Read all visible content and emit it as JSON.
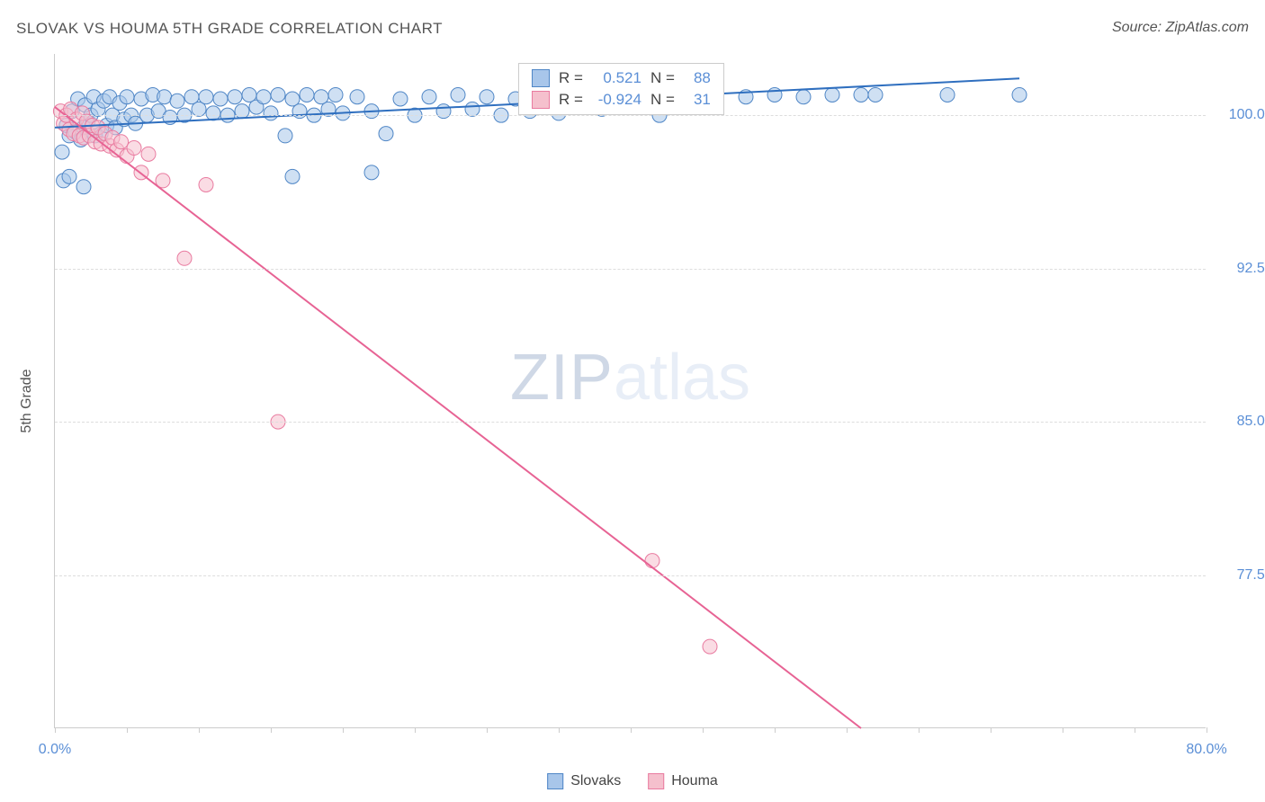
{
  "title": "SLOVAK VS HOUMA 5TH GRADE CORRELATION CHART",
  "source": "Source: ZipAtlas.com",
  "y_axis_label": "5th Grade",
  "chart": {
    "type": "scatter",
    "xlim": [
      0.0,
      80.0
    ],
    "ylim": [
      70.0,
      103.0
    ],
    "x_tick_start": 0.0,
    "x_tick_end": 80.0,
    "x_tick_step": 5.0,
    "x_tick_labels": [
      {
        "x": 0.0,
        "text": "0.0%"
      },
      {
        "x": 80.0,
        "text": "80.0%"
      }
    ],
    "y_ticks": [
      77.5,
      85.0,
      92.5,
      100.0
    ],
    "y_tick_labels": [
      "77.5%",
      "85.0%",
      "92.5%",
      "100.0%"
    ],
    "grid_color": "#dddddd",
    "axis_color": "#cccccc",
    "background_color": "#ffffff",
    "marker_radius": 8,
    "marker_opacity": 0.55,
    "line_width": 2
  },
  "series": [
    {
      "name": "Slovaks",
      "color_fill": "#a8c6ea",
      "color_stroke": "#4f86c6",
      "line_color": "#2f6fbf",
      "R": "0.521",
      "N": "88",
      "trend": {
        "x1": 0,
        "y1": 99.4,
        "x2": 67,
        "y2": 101.8
      },
      "points": [
        [
          0.5,
          98.2
        ],
        [
          0.8,
          99.5
        ],
        [
          1.0,
          99.0
        ],
        [
          1.2,
          100.2
        ],
        [
          1.4,
          99.2
        ],
        [
          1.6,
          100.8
        ],
        [
          1.8,
          98.8
        ],
        [
          2.0,
          99.4
        ],
        [
          2.1,
          100.5
        ],
        [
          2.3,
          99.7
        ],
        [
          2.5,
          100.0
        ],
        [
          2.7,
          100.9
        ],
        [
          2.8,
          99.0
        ],
        [
          3.0,
          100.3
        ],
        [
          3.2,
          99.1
        ],
        [
          3.4,
          100.7
        ],
        [
          3.6,
          99.5
        ],
        [
          3.8,
          100.9
        ],
        [
          4.0,
          100.0
        ],
        [
          4.2,
          99.4
        ],
        [
          4.5,
          100.6
        ],
        [
          4.8,
          99.8
        ],
        [
          5.0,
          100.9
        ],
        [
          5.3,
          100.0
        ],
        [
          5.6,
          99.6
        ],
        [
          6.0,
          100.8
        ],
        [
          6.4,
          100.0
        ],
        [
          6.8,
          101.0
        ],
        [
          7.2,
          100.2
        ],
        [
          7.6,
          100.9
        ],
        [
          8.0,
          99.9
        ],
        [
          8.5,
          100.7
        ],
        [
          9.0,
          100.0
        ],
        [
          9.5,
          100.9
        ],
        [
          10.0,
          100.3
        ],
        [
          10.5,
          100.9
        ],
        [
          11.0,
          100.1
        ],
        [
          11.5,
          100.8
        ],
        [
          12.0,
          100.0
        ],
        [
          12.5,
          100.9
        ],
        [
          13.0,
          100.2
        ],
        [
          13.5,
          101.0
        ],
        [
          14.0,
          100.4
        ],
        [
          14.5,
          100.9
        ],
        [
          15.0,
          100.1
        ],
        [
          15.5,
          101.0
        ],
        [
          16.0,
          99.0
        ],
        [
          16.5,
          100.8
        ],
        [
          17.0,
          100.2
        ],
        [
          17.5,
          101.0
        ],
        [
          18.0,
          100.0
        ],
        [
          18.5,
          100.9
        ],
        [
          19.0,
          100.3
        ],
        [
          19.5,
          101.0
        ],
        [
          20.0,
          100.1
        ],
        [
          21.0,
          100.9
        ],
        [
          22.0,
          100.2
        ],
        [
          23.0,
          99.1
        ],
        [
          24.0,
          100.8
        ],
        [
          25.0,
          100.0
        ],
        [
          26.0,
          100.9
        ],
        [
          27.0,
          100.2
        ],
        [
          28.0,
          101.0
        ],
        [
          29.0,
          100.3
        ],
        [
          30.0,
          100.9
        ],
        [
          31.0,
          100.0
        ],
        [
          32.0,
          100.8
        ],
        [
          33.0,
          100.2
        ],
        [
          34.0,
          101.0
        ],
        [
          35.0,
          100.1
        ],
        [
          36.0,
          100.9
        ],
        [
          38.0,
          100.3
        ],
        [
          40.0,
          100.9
        ],
        [
          42.0,
          100.0
        ],
        [
          45.0,
          100.8
        ],
        [
          48.0,
          100.9
        ],
        [
          50.0,
          101.0
        ],
        [
          52.0,
          100.9
        ],
        [
          54.0,
          101.0
        ],
        [
          56.0,
          101.0
        ],
        [
          57.0,
          101.0
        ],
        [
          62.0,
          101.0
        ],
        [
          67.0,
          101.0
        ],
        [
          16.5,
          97.0
        ],
        [
          22.0,
          97.2
        ],
        [
          0.6,
          96.8
        ],
        [
          1.0,
          97.0
        ],
        [
          2.0,
          96.5
        ]
      ]
    },
    {
      "name": "Houma",
      "color_fill": "#f5c0cd",
      "color_stroke": "#e97ba0",
      "line_color": "#e76394",
      "R": "-0.924",
      "N": "31",
      "trend": {
        "x1": 0,
        "y1": 100.4,
        "x2": 56,
        "y2": 70.0
      },
      "points": [
        [
          0.4,
          100.2
        ],
        [
          0.6,
          99.6
        ],
        [
          0.8,
          100.0
        ],
        [
          1.0,
          99.3
        ],
        [
          1.1,
          100.3
        ],
        [
          1.3,
          99.1
        ],
        [
          1.5,
          99.8
        ],
        [
          1.7,
          99.0
        ],
        [
          1.9,
          100.1
        ],
        [
          2.0,
          98.9
        ],
        [
          2.2,
          99.7
        ],
        [
          2.4,
          99.0
        ],
        [
          2.6,
          99.5
        ],
        [
          2.8,
          98.7
        ],
        [
          3.0,
          99.4
        ],
        [
          3.2,
          98.6
        ],
        [
          3.5,
          99.1
        ],
        [
          3.8,
          98.5
        ],
        [
          4.0,
          98.9
        ],
        [
          4.3,
          98.3
        ],
        [
          4.6,
          98.7
        ],
        [
          5.0,
          98.0
        ],
        [
          5.5,
          98.4
        ],
        [
          6.0,
          97.2
        ],
        [
          6.5,
          98.1
        ],
        [
          7.5,
          96.8
        ],
        [
          9.0,
          93.0
        ],
        [
          10.5,
          96.6
        ],
        [
          15.5,
          85.0
        ],
        [
          41.5,
          78.2
        ],
        [
          45.5,
          74.0
        ]
      ]
    }
  ],
  "stat_box": {
    "R_label": "R =",
    "N_label": "N ="
  },
  "legend_bottom": [
    {
      "name": "Slovaks",
      "fill": "#a8c6ea",
      "stroke": "#4f86c6"
    },
    {
      "name": "Houma",
      "fill": "#f5c0cd",
      "stroke": "#e97ba0"
    }
  ],
  "watermark": {
    "part1": "ZIP",
    "part2": "atlas"
  }
}
